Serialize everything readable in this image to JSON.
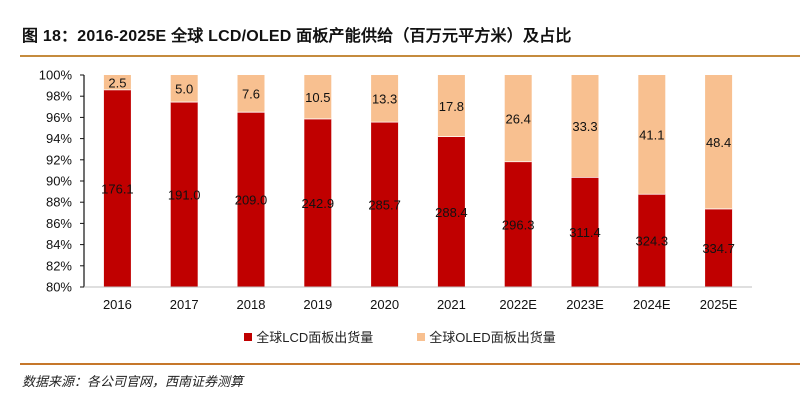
{
  "header": {
    "title": "图 18：2016-2025E 全球 LCD/OLED 面板产能供给（百万元平方米）及占比"
  },
  "footer": {
    "source": "数据来源：各公司官网，西南证券测算"
  },
  "colors": {
    "lcd": "#c00000",
    "oled": "#f8c090",
    "axis": "#111111",
    "baseline": "#bfbfbf"
  },
  "chart_data": {
    "type": "bar",
    "stacked": "percent",
    "title": "2016-2025E 全球 LCD/OLED 面板产能供给（百万元平方米）及占比",
    "xlabel": "",
    "ylabel": "",
    "ylim": [
      80,
      100
    ],
    "yticks": [
      "80%",
      "82%",
      "84%",
      "86%",
      "88%",
      "90%",
      "92%",
      "94%",
      "96%",
      "98%",
      "100%"
    ],
    "ytick_values": [
      80,
      82,
      84,
      86,
      88,
      90,
      92,
      94,
      96,
      98,
      100
    ],
    "categories": [
      "2016",
      "2017",
      "2018",
      "2019",
      "2020",
      "2021",
      "2022E",
      "2023E",
      "2024E",
      "2025E"
    ],
    "series": [
      {
        "name": "全球LCD面板出货量",
        "color": "#c00000",
        "values": [
          176.1,
          191.0,
          209.0,
          242.9,
          285.7,
          288.4,
          296.3,
          311.4,
          324.3,
          334.7
        ]
      },
      {
        "name": "全球OLED面板出货量",
        "color": "#f8c090",
        "values": [
          2.5,
          5.0,
          7.6,
          10.5,
          13.3,
          17.8,
          26.4,
          33.3,
          41.1,
          48.4
        ]
      }
    ],
    "data_labels": true,
    "grid": false,
    "legend": "bottom-center"
  }
}
